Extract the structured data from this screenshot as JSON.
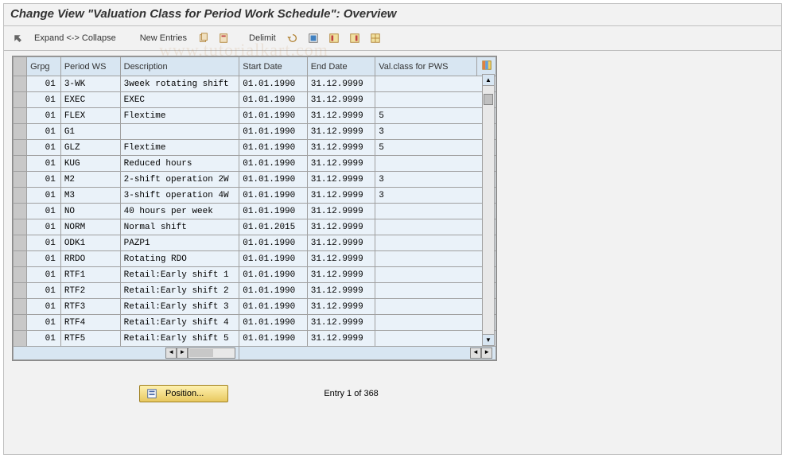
{
  "title": "Change View \"Valuation Class for Period Work Schedule\": Overview",
  "toolbar": {
    "expand_collapse": "Expand <-> Collapse",
    "new_entries": "New Entries",
    "delimit": "Delimit"
  },
  "columns": {
    "grpg": "Grpg",
    "period_ws": "Period WS",
    "description": "Description",
    "start_date": "Start Date",
    "end_date": "End Date",
    "val_class": "Val.class for PWS"
  },
  "rows": [
    {
      "grpg": "01",
      "pws": "3-WK",
      "desc": "3week rotating shift",
      "start": "01.01.1990",
      "end": "31.12.9999",
      "val": ""
    },
    {
      "grpg": "01",
      "pws": "EXEC",
      "desc": "EXEC",
      "start": "01.01.1990",
      "end": "31.12.9999",
      "val": ""
    },
    {
      "grpg": "01",
      "pws": "FLEX",
      "desc": "Flextime",
      "start": "01.01.1990",
      "end": "31.12.9999",
      "val": "5"
    },
    {
      "grpg": "01",
      "pws": "G1",
      "desc": "",
      "start": "01.01.1990",
      "end": "31.12.9999",
      "val": "3"
    },
    {
      "grpg": "01",
      "pws": "GLZ",
      "desc": "Flextime",
      "start": "01.01.1990",
      "end": "31.12.9999",
      "val": "5"
    },
    {
      "grpg": "01",
      "pws": "KUG",
      "desc": "Reduced hours",
      "start": "01.01.1990",
      "end": "31.12.9999",
      "val": ""
    },
    {
      "grpg": "01",
      "pws": "M2",
      "desc": "2-shift operation 2W",
      "start": "01.01.1990",
      "end": "31.12.9999",
      "val": "3"
    },
    {
      "grpg": "01",
      "pws": "M3",
      "desc": "3-shift operation 4W",
      "start": "01.01.1990",
      "end": "31.12.9999",
      "val": "3"
    },
    {
      "grpg": "01",
      "pws": "NO",
      "desc": "40 hours per week",
      "start": "01.01.1990",
      "end": "31.12.9999",
      "val": ""
    },
    {
      "grpg": "01",
      "pws": "NORM",
      "desc": "Normal shift",
      "start": "01.01.2015",
      "end": "31.12.9999",
      "val": ""
    },
    {
      "grpg": "01",
      "pws": "ODK1",
      "desc": "PAZP1",
      "start": "01.01.1990",
      "end": "31.12.9999",
      "val": ""
    },
    {
      "grpg": "01",
      "pws": "RRDO",
      "desc": "Rotating RDO",
      "start": "01.01.1990",
      "end": "31.12.9999",
      "val": ""
    },
    {
      "grpg": "01",
      "pws": "RTF1",
      "desc": "Retail:Early shift 1",
      "start": "01.01.1990",
      "end": "31.12.9999",
      "val": ""
    },
    {
      "grpg": "01",
      "pws": "RTF2",
      "desc": "Retail:Early shift 2",
      "start": "01.01.1990",
      "end": "31.12.9999",
      "val": ""
    },
    {
      "grpg": "01",
      "pws": "RTF3",
      "desc": "Retail:Early shift 3",
      "start": "01.01.1990",
      "end": "31.12.9999",
      "val": ""
    },
    {
      "grpg": "01",
      "pws": "RTF4",
      "desc": "Retail:Early shift 4",
      "start": "01.01.1990",
      "end": "31.12.9999",
      "val": ""
    },
    {
      "grpg": "01",
      "pws": "RTF5",
      "desc": "Retail:Early shift 5",
      "start": "01.01.1990",
      "end": "31.12.9999",
      "val": ""
    }
  ],
  "footer": {
    "position_button": "Position...",
    "entry_text": "Entry 1 of 368"
  }
}
